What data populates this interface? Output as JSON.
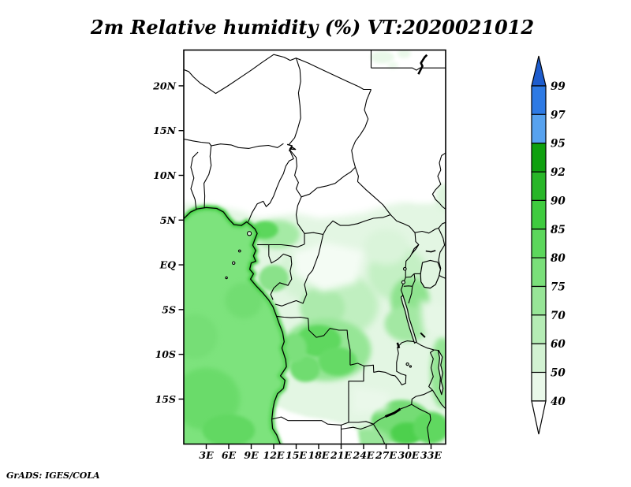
{
  "title": "2m Relative humidity (%) VT:2020021012",
  "watermark": "GrADS: IGES/COLA",
  "axes": {
    "lat_labels": [
      "20N",
      "15N",
      "10N",
      "5N",
      "EQ",
      "5S",
      "10S",
      "15S"
    ],
    "lon_labels": [
      "3E",
      "6E",
      "9E",
      "12E",
      "15E",
      "18E",
      "21E",
      "24E",
      "27E",
      "30E",
      "33E"
    ]
  },
  "colorbar": {
    "labels": [
      "99",
      "97",
      "95",
      "92",
      "90",
      "85",
      "80",
      "75",
      "70",
      "60",
      "50",
      "40"
    ],
    "colors_top_to_bottom": [
      "#1d5ccd",
      "#2e7ae4",
      "#57a2ef",
      "#0fa00f",
      "#28b628",
      "#3fcb3f",
      "#5cd75c",
      "#7adf7a",
      "#97e597",
      "#b5ecb5",
      "#d2f2d2",
      "#e9f8e9",
      "#ffffff"
    ]
  },
  "chart_data": {
    "type": "heatmap",
    "title": "2m Relative humidity (%) VT:2020021012",
    "variable": "2m Relative humidity",
    "units": "%",
    "valid_time": "2020021012",
    "renderer": "GrADS: IGES/COLA",
    "region": {
      "lon_min": "0E",
      "lon_max": "35E",
      "lat_min": "20S",
      "lat_max": "24N"
    },
    "x_ticks": [
      "3E",
      "6E",
      "9E",
      "12E",
      "15E",
      "18E",
      "21E",
      "24E",
      "27E",
      "30E",
      "33E"
    ],
    "y_ticks": [
      "20N",
      "15N",
      "10N",
      "5N",
      "EQ",
      "5S",
      "10S",
      "15S"
    ],
    "levels": [
      40,
      50,
      60,
      70,
      75,
      80,
      85,
      90,
      92,
      95,
      97,
      99
    ],
    "palette_low_to_high": [
      "#ffffff",
      "#e9f8e9",
      "#d2f2d2",
      "#b5ecb5",
      "#97e597",
      "#7adf7a",
      "#5cd75c",
      "#3fcb3f",
      "#28b628",
      "#0fa00f",
      "#57a2ef",
      "#2e7ae4",
      "#1d5ccd"
    ],
    "legend_position": "right",
    "grid": false,
    "features": [
      {
        "area": "Sahara and Sahel north of about 6-7N",
        "value_pct": "< 40 (white)"
      },
      {
        "area": "Small moist spots far north-east near 26-30E, 22-24N",
        "value_pct": "40-50"
      },
      {
        "area": "Atlantic / Gulf of Guinea ocean",
        "value_pct": "75-80"
      },
      {
        "area": "Bright band hugging the Guinea, Gabon and Angola coastline",
        "value_pct": "80-90"
      },
      {
        "area": "Congo basin interior (15-27E, 3N-5S)",
        "value_pct": "50-70"
      },
      {
        "area": "Eastern DRC / Lake Victoria highlands (28-32E)",
        "value_pct": "70-80"
      },
      {
        "area": "Angola and southern DRC plateau (15-25E, 6-13S)",
        "value_pct": "75-90"
      },
      {
        "area": "South-west dry wedge over Namibia/SW Angola (12-23E, 16-20S)",
        "value_pct": "< 40 (white)"
      },
      {
        "area": "Zambezi valley / Zimbabwe patches (25-34E, 15-20S)",
        "value_pct": "80-90"
      }
    ]
  }
}
